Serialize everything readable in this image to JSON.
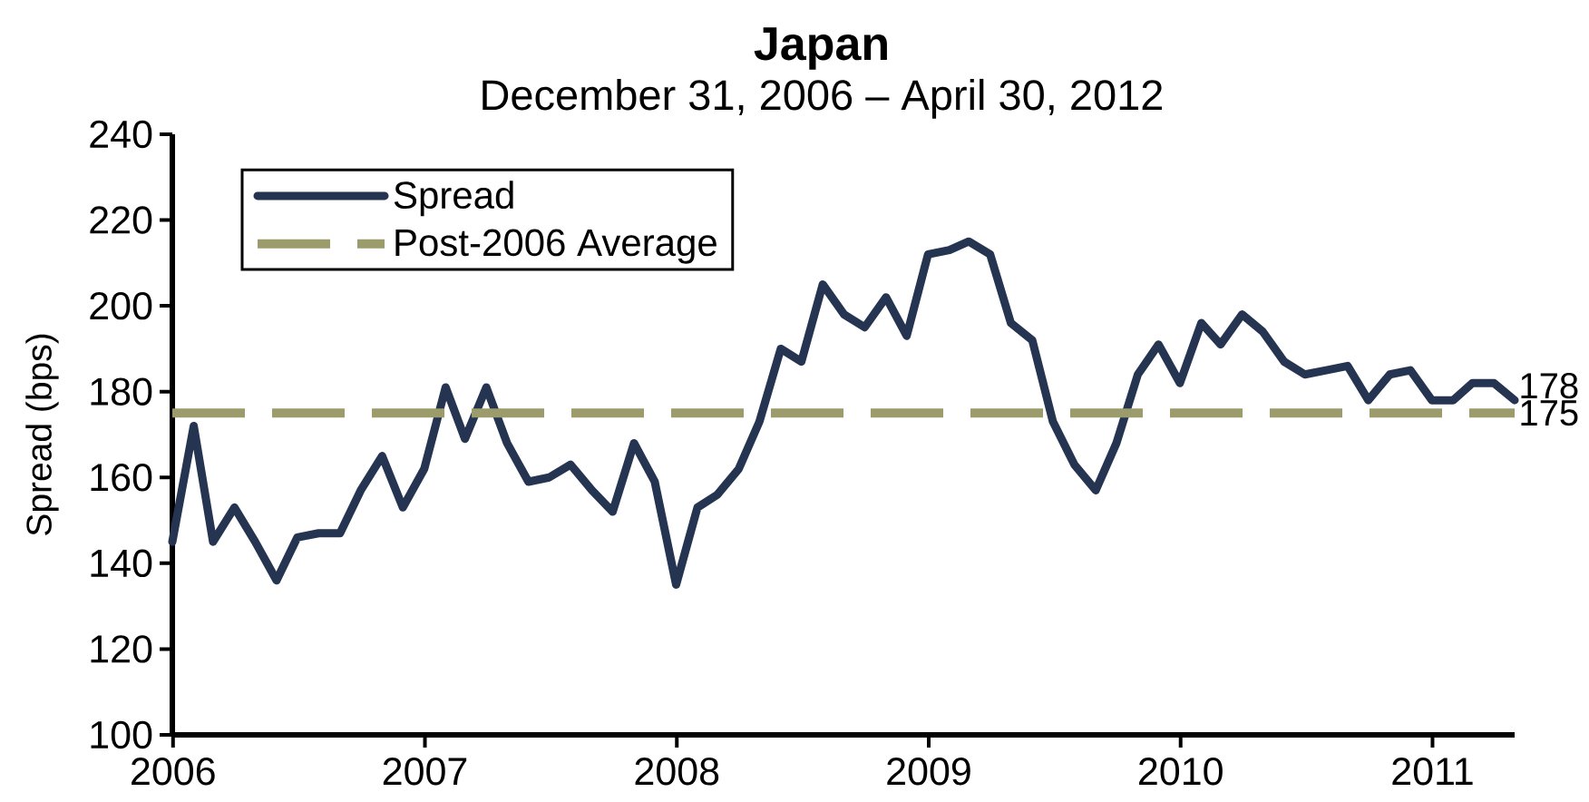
{
  "chart_data": {
    "type": "line",
    "title": "Japan",
    "subtitle": "December 31, 2006 – April 30, 2012",
    "ylabel": "Spread (bps)",
    "x": [
      "2005-12-31",
      "2006-01-31",
      "2006-02-28",
      "2006-03-31",
      "2006-04-30",
      "2006-05-31",
      "2006-06-30",
      "2006-07-31",
      "2006-08-31",
      "2006-09-30",
      "2006-10-31",
      "2006-11-30",
      "2006-12-31",
      "2007-01-31",
      "2007-02-28",
      "2007-03-31",
      "2007-04-30",
      "2007-05-31",
      "2007-06-30",
      "2007-07-31",
      "2007-08-31",
      "2007-09-30",
      "2007-10-31",
      "2007-11-30",
      "2007-12-31",
      "2008-01-31",
      "2008-02-29",
      "2008-03-31",
      "2008-04-30",
      "2008-05-31",
      "2008-06-30",
      "2008-07-31",
      "2008-08-31",
      "2008-09-30",
      "2008-10-31",
      "2008-11-30",
      "2008-12-31",
      "2009-01-31",
      "2009-02-28",
      "2009-03-31",
      "2009-04-30",
      "2009-05-31",
      "2009-06-30",
      "2009-07-31",
      "2009-08-31",
      "2009-09-30",
      "2009-10-31",
      "2009-11-30",
      "2009-12-31",
      "2010-01-31",
      "2010-02-28",
      "2010-03-31",
      "2010-04-30",
      "2010-05-31",
      "2010-06-30",
      "2010-07-31",
      "2010-08-31",
      "2010-09-30",
      "2010-10-31",
      "2010-11-30",
      "2010-12-31",
      "2011-01-31",
      "2011-02-28",
      "2011-03-31",
      "2011-04-30"
    ],
    "series": [
      {
        "name": "Spread",
        "color": "#243451",
        "values": [
          145,
          172,
          145,
          153,
          145,
          136,
          146,
          147,
          147,
          157,
          165,
          153,
          162,
          181,
          169,
          181,
          168,
          159,
          160,
          163,
          157,
          152,
          168,
          159,
          135,
          153,
          156,
          162,
          173,
          190,
          187,
          205,
          198,
          195,
          202,
          193,
          212,
          213,
          215,
          212,
          196,
          192,
          173,
          163,
          157,
          168,
          184,
          191,
          182,
          196,
          191,
          198,
          194,
          187,
          184,
          185,
          186,
          178,
          184,
          185,
          178,
          178,
          182,
          182,
          178
        ],
        "value_labels": [
          null,
          null,
          null,
          null,
          null,
          null,
          null,
          null,
          null,
          null,
          null,
          null,
          null,
          null,
          null,
          null,
          null,
          null,
          null,
          null,
          null,
          null,
          null,
          null,
          null,
          null,
          null,
          null,
          null,
          null,
          null,
          null,
          null,
          null,
          null,
          null,
          null,
          null,
          null,
          null,
          null,
          null,
          null,
          null,
          null,
          null,
          null,
          null,
          null,
          null,
          null,
          null,
          null,
          null,
          null,
          null,
          null,
          null,
          null,
          null,
          null,
          null,
          null,
          null,
          "178"
        ]
      }
    ],
    "xlim": [
      "2005-12-31",
      "2011-04-30"
    ],
    "xticks": [
      "2006",
      "2007",
      "2008",
      "2009",
      "2010",
      "2011"
    ],
    "ylim": [
      100,
      240
    ],
    "yticks": [
      100,
      120,
      140,
      160,
      180,
      200,
      220,
      240
    ],
    "ref_lines": [
      {
        "axis": "y",
        "value": 175,
        "label": "Post-2006 Average",
        "color": "#9c9b6b",
        "line_style": "dashed"
      }
    ],
    "annotations": [
      {
        "text": "175",
        "x": "2011-04-30",
        "y": 175
      }
    ],
    "legend": "top left"
  }
}
